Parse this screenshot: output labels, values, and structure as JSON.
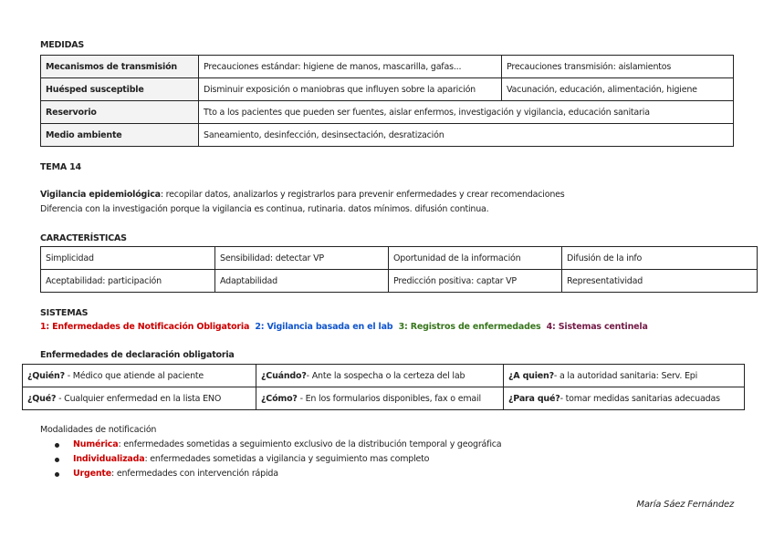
{
  "medidas": {
    "title": "MEDIDAS",
    "rows": [
      {
        "label": "Mecanismos de transmisión",
        "c1": "Precauciones estándar: higiene de manos, mascarilla, gafas...",
        "c2": "Precauciones transmisión: aislamientos"
      },
      {
        "label": "Huésped susceptible",
        "c1": "Disminuir exposición o maniobras que influyen sobre la aparición",
        "c2": "Vacunación, educación, alimentación, higiene"
      },
      {
        "label": "Reservorio",
        "c1": "Tto a los pacientes que pueden ser fuentes, aislar enfermos, investigación y vigilancia, educación sanitaria"
      },
      {
        "label": "Medio ambiente",
        "c1": "Saneamiento, desinfección, desinsectación, desratización"
      }
    ]
  },
  "tema": {
    "title": "TEMA 14",
    "def_term": "Vigilancia epidemiológica",
    "def_text": ": recopilar datos, analizarlos y registrarlos para prevenir enfermedades y crear recomendaciones",
    "line2": "Diferencia con la investigación porque la vigilancia es continua, rutinaria. datos mínimos. difusión continua."
  },
  "caracteristicas": {
    "title": "CARACTERÍSTICAS",
    "rows": [
      [
        "Simplicidad",
        "Sensibilidad: detectar VP",
        "Oportunidad de la información",
        "Difusión de la info"
      ],
      [
        "Aceptabilidad: participación",
        "Adaptabilidad",
        "Predicción positiva: captar VP",
        "Representatividad"
      ]
    ]
  },
  "sistemas": {
    "title": "SISTEMAS",
    "items": [
      "1: Enfermedades de Notificación Obligatoria",
      "2: Vigilancia basada en el lab",
      "3: Registros de enfermedades",
      "4: Sistemas centinela"
    ]
  },
  "eno": {
    "title": "Enfermedades de declaración obligatoria",
    "rows": [
      [
        {
          "q": "¿Quién?",
          "a": " - Médico que atiende al paciente"
        },
        {
          "q": "¿Cuándo?",
          "a": "- Ante la sospecha o la certeza del lab"
        },
        {
          "q": "¿A quien?",
          "a": "- a la autoridad sanitaria: Serv. Epi"
        }
      ],
      [
        {
          "q": "¿Qué?",
          "a": " - Cualquier enfermedad en la lista ENO"
        },
        {
          "q": "¿Cómo?",
          "a": " - En los formularios disponibles, fax o email"
        },
        {
          "q": "¿Para qué?",
          "a": "- tomar medidas sanitarias adecuadas"
        }
      ]
    ]
  },
  "modalidades": {
    "title": "Modalidades de notificación",
    "items": [
      {
        "term": "Numérica",
        "text": ": enfermedades sometidas a seguimiento exclusivo de la distribución temporal y geográfica"
      },
      {
        "term": "Individualizada",
        "text": ": enfermedades sometidas a vigilancia y seguimiento mas completo"
      },
      {
        "term": "Urgente",
        "text": ": enfermedades con intervención rápida"
      }
    ]
  },
  "author": "María Sáez Fernández"
}
